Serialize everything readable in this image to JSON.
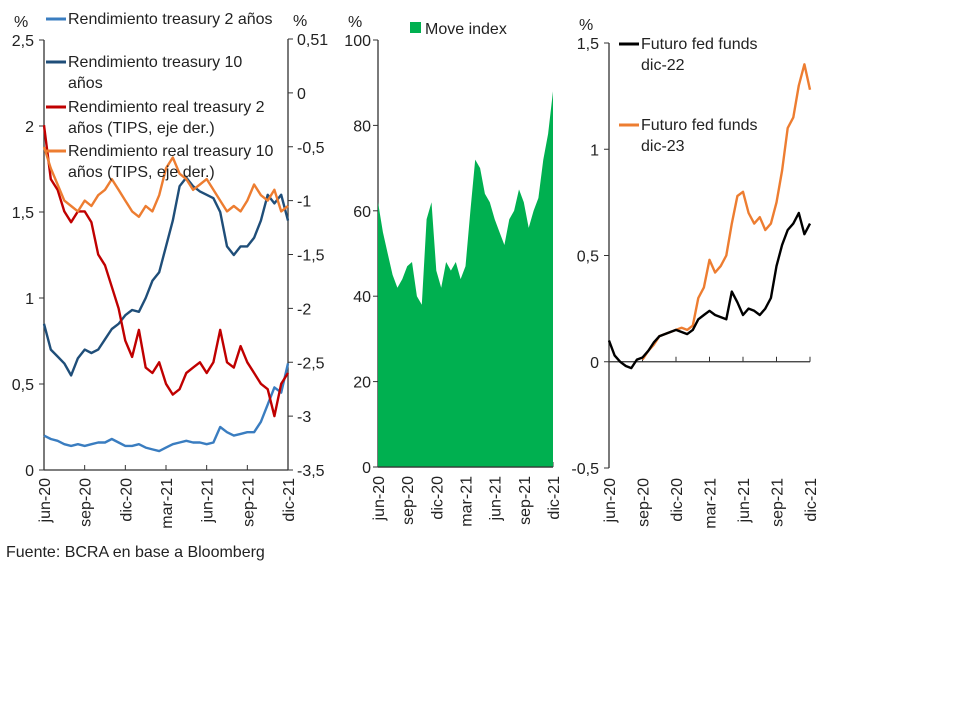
{
  "source": "Fuente: BCRA en base a Bloomberg",
  "chart_data": [
    {
      "type": "line",
      "y_unit_left": "%",
      "y_unit_right": "%",
      "x_ticks": [
        "jun-20",
        "sep-20",
        "dic-20",
        "mar-21",
        "jun-21",
        "sep-21",
        "dic-21"
      ],
      "ylim_left": [
        0,
        2.5
      ],
      "y_ticks_left": [
        "0",
        "0,5",
        "1",
        "1,5",
        "2",
        "2,5"
      ],
      "ylim_right": [
        -3.5,
        0.5
      ],
      "y_ticks_right": [
        "-3,5",
        "-3",
        "-2,5",
        "-2",
        "-1,5",
        "-1",
        "-0,5",
        "0",
        "0,51"
      ],
      "legend_placement": "top",
      "x": [
        "2020-06-01",
        "2020-06-16",
        "2020-07-01",
        "2020-07-16",
        "2020-08-01",
        "2020-08-16",
        "2020-09-01",
        "2020-09-16",
        "2020-10-01",
        "2020-10-16",
        "2020-11-01",
        "2020-11-16",
        "2020-12-01",
        "2020-12-16",
        "2021-01-01",
        "2021-01-16",
        "2021-02-01",
        "2021-02-16",
        "2021-03-01",
        "2021-03-16",
        "2021-04-01",
        "2021-04-16",
        "2021-05-01",
        "2021-05-16",
        "2021-06-01",
        "2021-06-16",
        "2021-07-01",
        "2021-07-16",
        "2021-08-01",
        "2021-08-16",
        "2021-09-01",
        "2021-09-16",
        "2021-10-01",
        "2021-10-16",
        "2021-11-01",
        "2021-11-16",
        "2021-12-01"
      ],
      "series": [
        {
          "name": "Rendimiento treasury 2 años",
          "axis": "left",
          "color": "#3a7dc0",
          "values": [
            0.2,
            0.18,
            0.17,
            0.15,
            0.14,
            0.15,
            0.14,
            0.15,
            0.16,
            0.16,
            0.18,
            0.16,
            0.14,
            0.14,
            0.15,
            0.13,
            0.12,
            0.11,
            0.13,
            0.15,
            0.16,
            0.17,
            0.16,
            0.16,
            0.15,
            0.16,
            0.25,
            0.22,
            0.2,
            0.21,
            0.22,
            0.22,
            0.28,
            0.38,
            0.48,
            0.45,
            0.62
          ]
        },
        {
          "name": "Rendimiento treasury 10 años",
          "axis": "left",
          "color": "#1f4e79",
          "values": [
            0.85,
            0.7,
            0.66,
            0.62,
            0.55,
            0.65,
            0.7,
            0.68,
            0.7,
            0.76,
            0.82,
            0.85,
            0.9,
            0.93,
            0.92,
            1.0,
            1.1,
            1.15,
            1.3,
            1.45,
            1.65,
            1.7,
            1.65,
            1.62,
            1.6,
            1.58,
            1.5,
            1.3,
            1.25,
            1.3,
            1.3,
            1.35,
            1.45,
            1.6,
            1.55,
            1.6,
            1.45
          ]
        },
        {
          "name": "Rendimiento real treasury 2 años (TIPS, eje der.)",
          "axis": "right",
          "color": "#c00000",
          "values": [
            -0.3,
            -0.8,
            -0.9,
            -1.1,
            -1.2,
            -1.1,
            -1.1,
            -1.2,
            -1.5,
            -1.6,
            -1.8,
            -2.0,
            -2.3,
            -2.45,
            -2.2,
            -2.55,
            -2.6,
            -2.5,
            -2.7,
            -2.8,
            -2.75,
            -2.6,
            -2.55,
            -2.5,
            -2.6,
            -2.5,
            -2.2,
            -2.5,
            -2.55,
            -2.35,
            -2.5,
            -2.6,
            -2.7,
            -2.75,
            -3.0,
            -2.7,
            -2.6
          ]
        },
        {
          "name": "Rendimiento real treasury 10 años (TIPS, eje der.)",
          "axis": "right",
          "color": "#ed7d31",
          "values": [
            -0.5,
            -0.7,
            -0.85,
            -1.0,
            -1.05,
            -1.1,
            -1.0,
            -1.05,
            -0.95,
            -0.9,
            -0.8,
            -0.9,
            -1.0,
            -1.1,
            -1.15,
            -1.05,
            -1.1,
            -0.95,
            -0.7,
            -0.6,
            -0.75,
            -0.8,
            -0.9,
            -0.85,
            -0.8,
            -0.9,
            -1.0,
            -1.1,
            -1.05,
            -1.1,
            -1.0,
            -0.85,
            -0.95,
            -1.0,
            -0.9,
            -1.1,
            -1.05
          ]
        }
      ]
    },
    {
      "type": "area",
      "y_unit": "%",
      "x_ticks": [
        "jun-20",
        "sep-20",
        "dic-20",
        "mar-21",
        "jun-21",
        "sep-21",
        "dic-21"
      ],
      "ylim": [
        0,
        100
      ],
      "y_ticks": [
        "0",
        "20",
        "40",
        "60",
        "80",
        "100"
      ],
      "legend_placement": "top",
      "x": [
        "2020-06-01",
        "2020-06-16",
        "2020-07-01",
        "2020-07-16",
        "2020-08-01",
        "2020-08-16",
        "2020-09-01",
        "2020-09-16",
        "2020-10-01",
        "2020-10-16",
        "2020-11-01",
        "2020-11-16",
        "2020-12-01",
        "2020-12-16",
        "2021-01-01",
        "2021-01-16",
        "2021-02-01",
        "2021-02-16",
        "2021-03-01",
        "2021-03-16",
        "2021-04-01",
        "2021-04-16",
        "2021-05-01",
        "2021-05-16",
        "2021-06-01",
        "2021-06-16",
        "2021-07-01",
        "2021-07-16",
        "2021-08-01",
        "2021-08-16",
        "2021-09-01",
        "2021-09-16",
        "2021-10-01",
        "2021-10-16",
        "2021-11-01",
        "2021-11-16",
        "2021-12-01"
      ],
      "series": [
        {
          "name": "Move index",
          "color": "#00b050",
          "values": [
            62,
            55,
            50,
            45,
            42,
            44,
            47,
            48,
            40,
            38,
            58,
            62,
            46,
            42,
            48,
            46,
            48,
            44,
            47,
            60,
            72,
            70,
            64,
            62,
            58,
            55,
            52,
            58,
            60,
            65,
            62,
            56,
            60,
            63,
            72,
            78,
            88
          ]
        }
      ]
    },
    {
      "type": "line",
      "y_unit": "%",
      "x_ticks": [
        "jun-20",
        "sep-20",
        "dic-20",
        "mar-21",
        "jun-21",
        "sep-21",
        "dic-21"
      ],
      "ylim": [
        -0.5,
        1.5
      ],
      "y_ticks": [
        "-0,5",
        "0",
        "0,5",
        "1",
        "1,5"
      ],
      "legend_placement": "top-left",
      "x": [
        "2020-06-01",
        "2020-06-16",
        "2020-07-01",
        "2020-07-16",
        "2020-08-01",
        "2020-08-16",
        "2020-09-01",
        "2020-09-16",
        "2020-10-01",
        "2020-10-16",
        "2020-11-01",
        "2020-11-16",
        "2020-12-01",
        "2020-12-16",
        "2021-01-01",
        "2021-01-16",
        "2021-02-01",
        "2021-02-16",
        "2021-03-01",
        "2021-03-16",
        "2021-04-01",
        "2021-04-16",
        "2021-05-01",
        "2021-05-16",
        "2021-06-01",
        "2021-06-16",
        "2021-07-01",
        "2021-07-16",
        "2021-08-01",
        "2021-08-16",
        "2021-09-01",
        "2021-09-16",
        "2021-10-01",
        "2021-10-16",
        "2021-11-01",
        "2021-11-16",
        "2021-12-01"
      ],
      "series": [
        {
          "name": "Futuro fed funds dic-22",
          "color": "#000000",
          "values": [
            0.1,
            0.03,
            0,
            -0.02,
            -0.03,
            0.01,
            0.02,
            0.05,
            0.09,
            0.12,
            0.13,
            0.14,
            0.15,
            0.14,
            0.13,
            0.15,
            0.2,
            0.22,
            0.24,
            0.22,
            0.21,
            0.2,
            0.33,
            0.28,
            0.22,
            0.25,
            0.24,
            0.22,
            0.25,
            0.3,
            0.45,
            0.55,
            0.62,
            0.65,
            0.7,
            0.6,
            0.65
          ]
        },
        {
          "name": "Futuro fed funds dic-23",
          "color": "#ed7d31",
          "values": [
            null,
            null,
            null,
            null,
            null,
            null,
            0.01,
            0.05,
            0.08,
            0.12,
            0.13,
            0.14,
            0.15,
            0.16,
            0.15,
            0.17,
            0.3,
            0.35,
            0.48,
            0.42,
            0.45,
            0.5,
            0.65,
            0.78,
            0.8,
            0.7,
            0.65,
            0.68,
            0.62,
            0.65,
            0.75,
            0.9,
            1.1,
            1.15,
            1.3,
            1.4,
            1.28
          ]
        }
      ]
    }
  ]
}
